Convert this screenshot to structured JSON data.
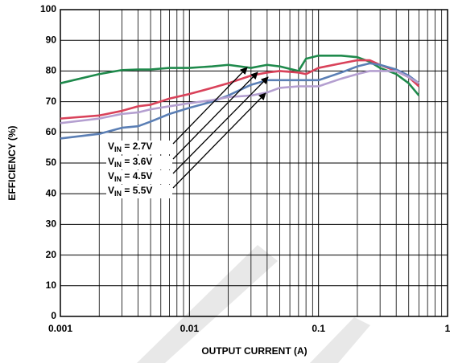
{
  "chart_data": {
    "type": "line",
    "x_label": "OUTPUT CURRENT (A)",
    "y_label": "EFFICIENCY (%)",
    "x_scale": "log",
    "xlim": [
      0.001,
      1
    ],
    "xticks": [
      0.001,
      0.01,
      0.1,
      1
    ],
    "x_minor_ticks": [
      0.002,
      0.003,
      0.004,
      0.005,
      0.006,
      0.007,
      0.008,
      0.009,
      0.02,
      0.03,
      0.04,
      0.05,
      0.06,
      0.07,
      0.08,
      0.09,
      0.2,
      0.3,
      0.4,
      0.5,
      0.6,
      0.7,
      0.8,
      0.9
    ],
    "ylim": [
      0,
      100
    ],
    "yticks": [
      0,
      10,
      20,
      30,
      40,
      50,
      60,
      70,
      80,
      90,
      100
    ],
    "grid": true,
    "x": [
      0.001,
      0.002,
      0.003,
      0.004,
      0.005,
      0.007,
      0.01,
      0.015,
      0.02,
      0.03,
      0.04,
      0.05,
      0.07,
      0.08,
      0.1,
      0.15,
      0.2,
      0.25,
      0.3,
      0.4,
      0.5,
      0.6
    ],
    "series": [
      {
        "name": [
          "V",
          "IN",
          " = 2.7V"
        ],
        "color": "#1f8a4c",
        "values": [
          76,
          79,
          80.3,
          80.5,
          80.5,
          81,
          81,
          81.5,
          82,
          81,
          82,
          81.5,
          80,
          84,
          85,
          85,
          84.5,
          83,
          81,
          79,
          76,
          72
        ]
      },
      {
        "name": [
          "V",
          "IN",
          " = 3.6V"
        ],
        "color": "#d9425a",
        "values": [
          64.5,
          65.5,
          67,
          68.5,
          69,
          71,
          72.5,
          74.5,
          76,
          78.5,
          79.5,
          80,
          79.5,
          79,
          81,
          82.5,
          83.5,
          83.5,
          82,
          80,
          78,
          75
        ]
      },
      {
        "name": [
          "V",
          "IN",
          " = 4.5V"
        ],
        "color": "#5b7fb5",
        "values": [
          58,
          59.5,
          61.5,
          62,
          63.5,
          66,
          68,
          70,
          72,
          75.5,
          77,
          77,
          77,
          77,
          77,
          79.5,
          81.5,
          82.5,
          82,
          80.5,
          78.5,
          76
        ]
      },
      {
        "name": [
          "V",
          "IN",
          " = 5.5V"
        ],
        "color": "#b49fd0",
        "values": [
          63,
          64.5,
          66,
          66.5,
          67.5,
          68.5,
          69.5,
          70.5,
          71.5,
          72,
          73,
          74.5,
          75,
          75,
          75,
          77.5,
          79,
          80,
          80,
          80,
          78,
          76
        ]
      }
    ]
  }
}
